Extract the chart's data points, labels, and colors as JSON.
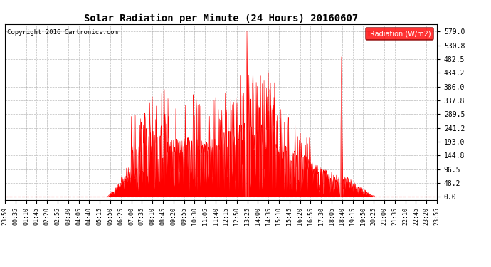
{
  "title": "Solar Radiation per Minute (24 Hours) 20160607",
  "copyright_text": "Copyright 2016 Cartronics.com",
  "legend_label": "Radiation (W/m2)",
  "fill_color": "#FF0000",
  "line_color": "#FF0000",
  "background_color": "#FFFFFF",
  "grid_color": "#AAAAAA",
  "yticks": [
    0.0,
    48.2,
    96.5,
    144.8,
    193.0,
    241.2,
    289.5,
    337.8,
    386.0,
    434.2,
    482.5,
    530.8,
    579.0
  ],
  "ymax": 605,
  "ymin": -12,
  "x_tick_labels": [
    "23:59",
    "00:35",
    "01:10",
    "01:45",
    "02:20",
    "02:55",
    "03:30",
    "04:05",
    "04:40",
    "05:15",
    "05:50",
    "06:25",
    "07:00",
    "07:35",
    "08:10",
    "08:45",
    "09:20",
    "09:55",
    "10:30",
    "11:05",
    "11:40",
    "12:15",
    "12:50",
    "13:25",
    "14:00",
    "14:35",
    "15:10",
    "15:45",
    "16:20",
    "16:55",
    "17:30",
    "18:05",
    "18:40",
    "19:15",
    "19:50",
    "20:25",
    "21:00",
    "21:35",
    "22:10",
    "22:45",
    "23:20",
    "23:55"
  ]
}
